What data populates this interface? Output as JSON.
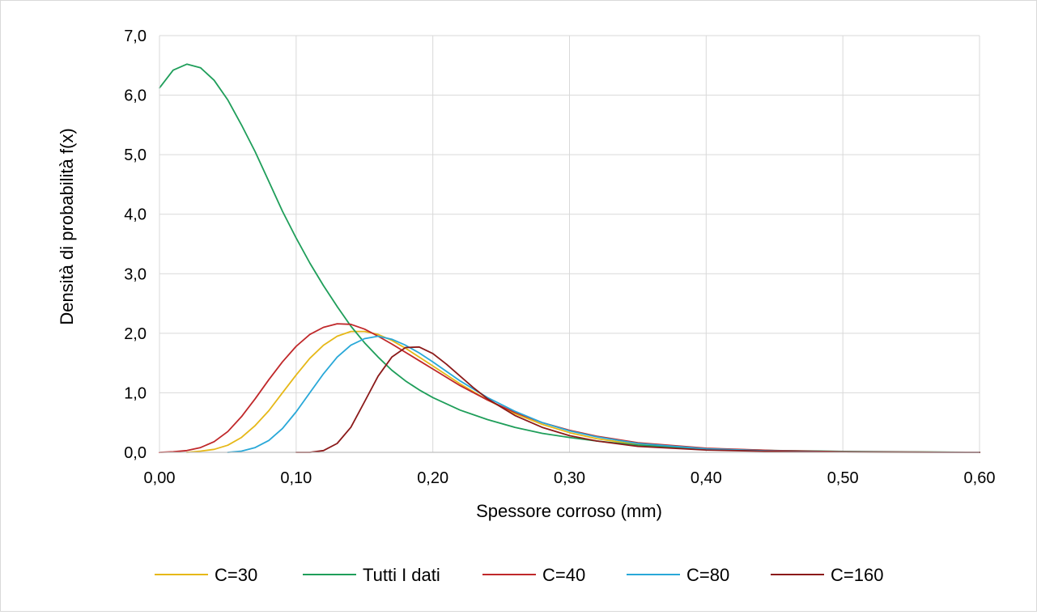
{
  "chart_data": {
    "type": "line",
    "title": "",
    "xlabel": "Spessore corroso (mm)",
    "ylabel": "Densità di probabilità f(x)",
    "xlim": [
      0,
      0.6
    ],
    "ylim": [
      0,
      7
    ],
    "x_ticks": [
      "0,00",
      "0,10",
      "0,20",
      "0,30",
      "0,40",
      "0,50",
      "0,60"
    ],
    "y_ticks": [
      "0,0",
      "1,0",
      "2,0",
      "3,0",
      "4,0",
      "5,0",
      "6,0",
      "7,0"
    ],
    "grid": true,
    "legend_position": "bottom",
    "series": [
      {
        "name": "C=30",
        "color": "#e6b818",
        "points": [
          [
            0.02,
            0.0
          ],
          [
            0.03,
            0.02
          ],
          [
            0.04,
            0.05
          ],
          [
            0.05,
            0.12
          ],
          [
            0.06,
            0.25
          ],
          [
            0.07,
            0.45
          ],
          [
            0.08,
            0.7
          ],
          [
            0.09,
            1.0
          ],
          [
            0.1,
            1.3
          ],
          [
            0.11,
            1.58
          ],
          [
            0.12,
            1.8
          ],
          [
            0.13,
            1.95
          ],
          [
            0.14,
            2.03
          ],
          [
            0.15,
            2.03
          ],
          [
            0.16,
            1.98
          ],
          [
            0.17,
            1.88
          ],
          [
            0.18,
            1.75
          ],
          [
            0.19,
            1.6
          ],
          [
            0.2,
            1.45
          ],
          [
            0.22,
            1.15
          ],
          [
            0.24,
            0.88
          ],
          [
            0.26,
            0.65
          ],
          [
            0.28,
            0.47
          ],
          [
            0.3,
            0.33
          ],
          [
            0.32,
            0.23
          ],
          [
            0.35,
            0.13
          ],
          [
            0.4,
            0.05
          ],
          [
            0.45,
            0.02
          ],
          [
            0.5,
            0.005
          ],
          [
            0.6,
            0.0
          ]
        ]
      },
      {
        "name": "Tutti I dati",
        "color": "#1f9e5a",
        "points": [
          [
            0.0,
            6.12
          ],
          [
            0.01,
            6.42
          ],
          [
            0.02,
            6.52
          ],
          [
            0.03,
            6.46
          ],
          [
            0.04,
            6.25
          ],
          [
            0.05,
            5.92
          ],
          [
            0.06,
            5.5
          ],
          [
            0.07,
            5.05
          ],
          [
            0.08,
            4.55
          ],
          [
            0.09,
            4.05
          ],
          [
            0.1,
            3.6
          ],
          [
            0.11,
            3.18
          ],
          [
            0.12,
            2.8
          ],
          [
            0.13,
            2.45
          ],
          [
            0.14,
            2.12
          ],
          [
            0.15,
            1.84
          ],
          [
            0.16,
            1.6
          ],
          [
            0.17,
            1.38
          ],
          [
            0.18,
            1.2
          ],
          [
            0.19,
            1.05
          ],
          [
            0.2,
            0.92
          ],
          [
            0.22,
            0.71
          ],
          [
            0.24,
            0.55
          ],
          [
            0.26,
            0.42
          ],
          [
            0.28,
            0.32
          ],
          [
            0.3,
            0.25
          ],
          [
            0.32,
            0.19
          ],
          [
            0.35,
            0.12
          ],
          [
            0.4,
            0.06
          ],
          [
            0.45,
            0.03
          ],
          [
            0.5,
            0.015
          ],
          [
            0.6,
            0.0
          ]
        ]
      },
      {
        "name": "C=40",
        "color": "#c0282a",
        "points": [
          [
            0.0,
            0.0
          ],
          [
            0.01,
            0.01
          ],
          [
            0.02,
            0.03
          ],
          [
            0.03,
            0.08
          ],
          [
            0.04,
            0.18
          ],
          [
            0.05,
            0.35
          ],
          [
            0.06,
            0.6
          ],
          [
            0.07,
            0.9
          ],
          [
            0.08,
            1.22
          ],
          [
            0.09,
            1.52
          ],
          [
            0.1,
            1.78
          ],
          [
            0.11,
            1.98
          ],
          [
            0.12,
            2.1
          ],
          [
            0.13,
            2.16
          ],
          [
            0.14,
            2.15
          ],
          [
            0.15,
            2.07
          ],
          [
            0.16,
            1.95
          ],
          [
            0.17,
            1.82
          ],
          [
            0.18,
            1.68
          ],
          [
            0.19,
            1.54
          ],
          [
            0.2,
            1.4
          ],
          [
            0.22,
            1.12
          ],
          [
            0.24,
            0.88
          ],
          [
            0.26,
            0.67
          ],
          [
            0.28,
            0.5
          ],
          [
            0.3,
            0.37
          ],
          [
            0.32,
            0.27
          ],
          [
            0.35,
            0.16
          ],
          [
            0.4,
            0.07
          ],
          [
            0.45,
            0.03
          ],
          [
            0.5,
            0.01
          ],
          [
            0.6,
            0.0
          ]
        ]
      },
      {
        "name": "C=80",
        "color": "#29a8d8",
        "points": [
          [
            0.05,
            0.0
          ],
          [
            0.06,
            0.02
          ],
          [
            0.07,
            0.08
          ],
          [
            0.08,
            0.2
          ],
          [
            0.09,
            0.4
          ],
          [
            0.1,
            0.68
          ],
          [
            0.11,
            1.0
          ],
          [
            0.12,
            1.32
          ],
          [
            0.13,
            1.6
          ],
          [
            0.14,
            1.8
          ],
          [
            0.15,
            1.91
          ],
          [
            0.16,
            1.95
          ],
          [
            0.17,
            1.9
          ],
          [
            0.18,
            1.8
          ],
          [
            0.19,
            1.67
          ],
          [
            0.2,
            1.52
          ],
          [
            0.22,
            1.2
          ],
          [
            0.24,
            0.92
          ],
          [
            0.26,
            0.69
          ],
          [
            0.28,
            0.5
          ],
          [
            0.3,
            0.36
          ],
          [
            0.32,
            0.26
          ],
          [
            0.35,
            0.15
          ],
          [
            0.4,
            0.06
          ],
          [
            0.45,
            0.02
          ],
          [
            0.5,
            0.005
          ],
          [
            0.6,
            0.0
          ]
        ]
      },
      {
        "name": "C=160",
        "color": "#8b1a1a",
        "points": [
          [
            0.1,
            0.0
          ],
          [
            0.11,
            0.0
          ],
          [
            0.12,
            0.03
          ],
          [
            0.13,
            0.15
          ],
          [
            0.14,
            0.42
          ],
          [
            0.15,
            0.85
          ],
          [
            0.16,
            1.28
          ],
          [
            0.17,
            1.6
          ],
          [
            0.18,
            1.76
          ],
          [
            0.19,
            1.77
          ],
          [
            0.2,
            1.66
          ],
          [
            0.21,
            1.48
          ],
          [
            0.22,
            1.28
          ],
          [
            0.23,
            1.08
          ],
          [
            0.24,
            0.9
          ],
          [
            0.26,
            0.62
          ],
          [
            0.28,
            0.42
          ],
          [
            0.3,
            0.28
          ],
          [
            0.32,
            0.19
          ],
          [
            0.35,
            0.1
          ],
          [
            0.4,
            0.04
          ],
          [
            0.45,
            0.015
          ],
          [
            0.5,
            0.005
          ],
          [
            0.6,
            0.0
          ]
        ]
      }
    ]
  }
}
